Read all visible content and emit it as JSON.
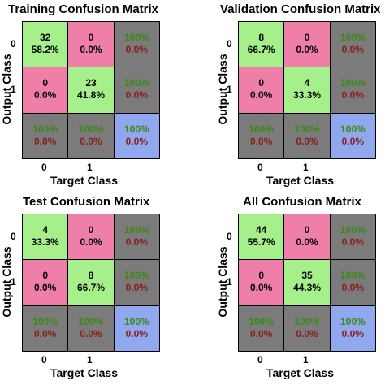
{
  "chart_data": [
    {
      "type": "heatmap",
      "title": "Training Confusion Matrix",
      "xlabel": "Target Class",
      "ylabel": "Output Class",
      "x_ticks": [
        "0",
        "1"
      ],
      "y_ticks": [
        "0",
        "1"
      ],
      "cells": [
        [
          [
            "32",
            "58.2%"
          ],
          [
            "0",
            "0.0%"
          ],
          [
            "100%",
            "0.0%"
          ]
        ],
        [
          [
            "0",
            "0.0%"
          ],
          [
            "23",
            "41.8%"
          ],
          [
            "100%",
            "0.0%"
          ]
        ],
        [
          [
            "100%",
            "0.0%"
          ],
          [
            "100%",
            "0.0%"
          ],
          [
            "100%",
            "0.0%"
          ]
        ]
      ]
    },
    {
      "type": "heatmap",
      "title": "Validation Confusion Matrix",
      "xlabel": "Target Class",
      "ylabel": "Output Class",
      "x_ticks": [
        "0",
        "1"
      ],
      "y_ticks": [
        "0",
        "1"
      ],
      "cells": [
        [
          [
            "8",
            "66.7%"
          ],
          [
            "0",
            "0.0%"
          ],
          [
            "100%",
            "0.0%"
          ]
        ],
        [
          [
            "0",
            "0.0%"
          ],
          [
            "4",
            "33.3%"
          ],
          [
            "100%",
            "0.0%"
          ]
        ],
        [
          [
            "100%",
            "0.0%"
          ],
          [
            "100%",
            "0.0%"
          ],
          [
            "100%",
            "0.0%"
          ]
        ]
      ]
    },
    {
      "type": "heatmap",
      "title": "Test Confusion Matrix",
      "xlabel": "Target Class",
      "ylabel": "Output Class",
      "x_ticks": [
        "0",
        "1"
      ],
      "y_ticks": [
        "0",
        "1"
      ],
      "cells": [
        [
          [
            "4",
            "33.3%"
          ],
          [
            "0",
            "0.0%"
          ],
          [
            "100%",
            "0.0%"
          ]
        ],
        [
          [
            "0",
            "0.0%"
          ],
          [
            "8",
            "66.7%"
          ],
          [
            "100%",
            "0.0%"
          ]
        ],
        [
          [
            "100%",
            "0.0%"
          ],
          [
            "100%",
            "0.0%"
          ],
          [
            "100%",
            "0.0%"
          ]
        ]
      ]
    },
    {
      "type": "heatmap",
      "title": "All Confusion Matrix",
      "xlabel": "Target Class",
      "ylabel": "Output Class",
      "x_ticks": [
        "0",
        "1"
      ],
      "y_ticks": [
        "0",
        "1"
      ],
      "cells": [
        [
          [
            "44",
            "55.7%"
          ],
          [
            "0",
            "0.0%"
          ],
          [
            "100%",
            "0.0%"
          ]
        ],
        [
          [
            "0",
            "0.0%"
          ],
          [
            "35",
            "44.3%"
          ],
          [
            "100%",
            "0.0%"
          ]
        ],
        [
          [
            "100%",
            "0.0%"
          ],
          [
            "100%",
            "0.0%"
          ],
          [
            "100%",
            "0.0%"
          ]
        ]
      ]
    }
  ],
  "colors": {
    "correct": "#a6f08c",
    "incorrect": "#ef7fa8",
    "summary": "#7b7b7b",
    "overall": "#8fa8ef",
    "text_dark": "#000000",
    "text_summary_top": "#3c8a14",
    "text_summary_bottom": "#8a1e1e"
  }
}
